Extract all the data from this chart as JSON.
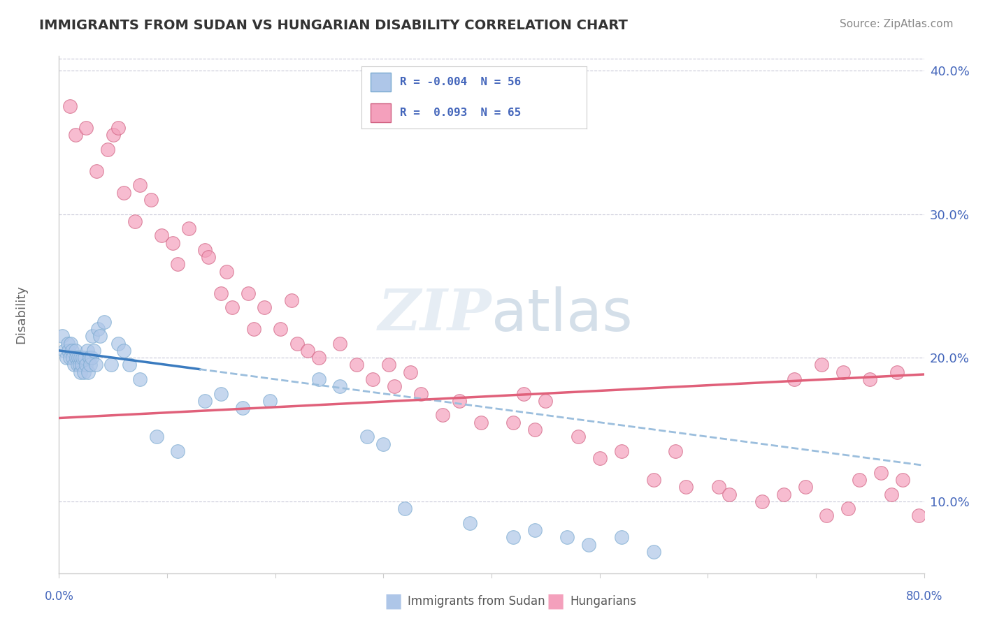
{
  "title": "IMMIGRANTS FROM SUDAN VS HUNGARIAN DISABILITY CORRELATION CHART",
  "source": "Source: ZipAtlas.com",
  "ylabel": "Disability",
  "legend_label1": "Immigrants from Sudan",
  "legend_label2": "Hungarians",
  "r1": -0.004,
  "n1": 56,
  "r2": 0.093,
  "n2": 65,
  "color1": "#aec6e8",
  "color2": "#f4a0bc",
  "trendline1_solid_color": "#3a7bbf",
  "trendline1_dash_color": "#9bbedd",
  "trendline2_color": "#e0607a",
  "blue_points_x": [
    0.3,
    0.5,
    0.7,
    0.8,
    0.9,
    1.0,
    1.1,
    1.2,
    1.3,
    1.4,
    1.5,
    1.6,
    1.7,
    1.8,
    1.9,
    2.0,
    2.0,
    2.1,
    2.2,
    2.3,
    2.4,
    2.5,
    2.6,
    2.7,
    2.8,
    2.9,
    3.0,
    3.1,
    3.2,
    3.4,
    3.6,
    3.8,
    4.2,
    4.8,
    5.5,
    6.0,
    6.5,
    7.5,
    9.0,
    11.0,
    13.5,
    15.0,
    17.0,
    19.5,
    24.0,
    26.0,
    28.5,
    30.0,
    32.0,
    38.0,
    42.0,
    44.0,
    47.0,
    49.0,
    52.0,
    55.0
  ],
  "blue_points_y": [
    21.5,
    20.5,
    20.0,
    21.0,
    20.5,
    20.0,
    21.0,
    20.5,
    20.0,
    19.5,
    20.5,
    20.0,
    19.5,
    20.0,
    19.5,
    20.0,
    19.0,
    19.5,
    20.0,
    19.0,
    20.0,
    19.5,
    20.5,
    19.0,
    20.0,
    19.5,
    20.0,
    21.5,
    20.5,
    19.5,
    22.0,
    21.5,
    22.5,
    19.5,
    21.0,
    20.5,
    19.5,
    18.5,
    14.5,
    13.5,
    17.0,
    17.5,
    16.5,
    17.0,
    18.5,
    18.0,
    14.5,
    14.0,
    9.5,
    8.5,
    7.5,
    8.0,
    7.5,
    7.0,
    7.5,
    6.5
  ],
  "pink_points_x": [
    1.0,
    1.5,
    2.5,
    3.5,
    4.5,
    5.0,
    5.5,
    6.0,
    7.0,
    7.5,
    8.5,
    9.5,
    10.5,
    11.0,
    12.0,
    13.5,
    13.8,
    15.0,
    15.5,
    16.0,
    17.5,
    18.0,
    19.0,
    20.5,
    21.5,
    22.0,
    23.0,
    24.0,
    26.0,
    27.5,
    29.0,
    30.5,
    31.0,
    32.5,
    33.5,
    35.5,
    37.0,
    39.0,
    42.0,
    43.0,
    44.0,
    45.0,
    48.0,
    50.0,
    52.0,
    55.0,
    57.0,
    58.0,
    61.0,
    62.0,
    65.0,
    67.0,
    69.0,
    71.0,
    73.0,
    74.0,
    76.0,
    77.0,
    78.0,
    79.5,
    68.0,
    70.5,
    72.5,
    75.0,
    77.5
  ],
  "pink_points_y": [
    37.5,
    35.5,
    36.0,
    33.0,
    34.5,
    35.5,
    36.0,
    31.5,
    29.5,
    32.0,
    31.0,
    28.5,
    28.0,
    26.5,
    29.0,
    27.5,
    27.0,
    24.5,
    26.0,
    23.5,
    24.5,
    22.0,
    23.5,
    22.0,
    24.0,
    21.0,
    20.5,
    20.0,
    21.0,
    19.5,
    18.5,
    19.5,
    18.0,
    19.0,
    17.5,
    16.0,
    17.0,
    15.5,
    15.5,
    17.5,
    15.0,
    17.0,
    14.5,
    13.0,
    13.5,
    11.5,
    13.5,
    11.0,
    11.0,
    10.5,
    10.0,
    10.5,
    11.0,
    9.0,
    9.5,
    11.5,
    12.0,
    10.5,
    11.5,
    9.0,
    18.5,
    19.5,
    19.0,
    18.5,
    19.0
  ],
  "xmin": 0.0,
  "xmax": 80.0,
  "ymin": 5.0,
  "ymax": 41.0,
  "yticks": [
    10.0,
    20.0,
    30.0,
    40.0
  ],
  "ytick_labels": [
    "10.0%",
    "20.0%",
    "30.0%",
    "40.0%"
  ],
  "background_color": "#ffffff",
  "grid_color": "#c8c8d8",
  "title_color": "#333333",
  "axis_label_color": "#4466bb",
  "ylabel_color": "#666666"
}
